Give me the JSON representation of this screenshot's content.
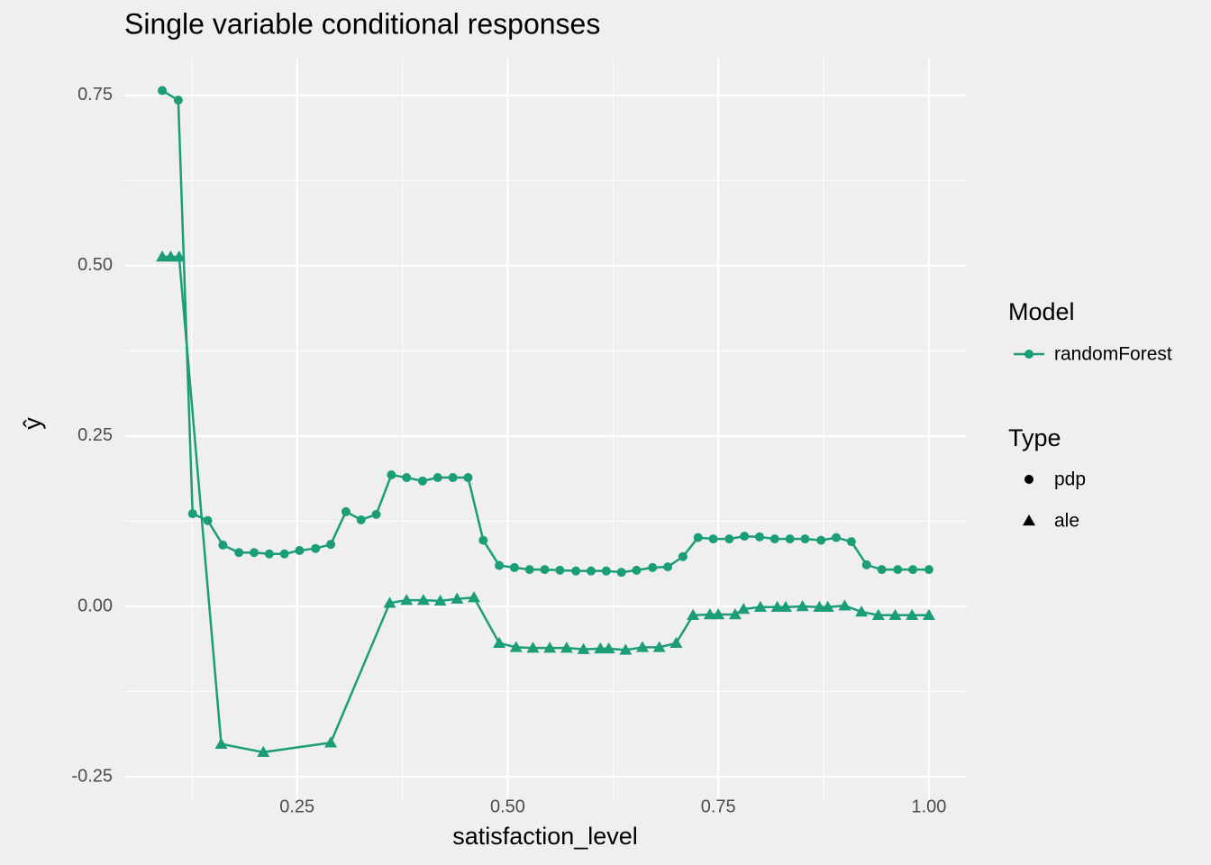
{
  "chart_data": {
    "type": "line",
    "title": "Single variable conditional responses",
    "x_label": "satisfaction_level",
    "y_label": "ŷ",
    "legend": {
      "model_title": "Model",
      "model": "randomForest",
      "type_title": "Type"
    },
    "series": [
      {
        "name": "pdp",
        "color": "#1b9e77",
        "marker": "circle",
        "x": [
          0.09,
          0.109,
          0.126,
          0.144,
          0.162,
          0.181,
          0.199,
          0.217,
          0.235,
          0.253,
          0.272,
          0.29,
          0.308,
          0.326,
          0.344,
          0.362,
          0.38,
          0.399,
          0.417,
          0.435,
          0.453,
          0.471,
          0.49,
          0.508,
          0.526,
          0.544,
          0.562,
          0.581,
          0.599,
          0.617,
          0.635,
          0.653,
          0.672,
          0.69,
          0.708,
          0.726,
          0.744,
          0.763,
          0.781,
          0.799,
          0.817,
          0.835,
          0.853,
          0.872,
          0.89,
          0.908,
          0.926,
          0.944,
          0.963,
          0.981,
          1.0
        ],
        "values": [
          0.757,
          0.743,
          0.136,
          0.126,
          0.09,
          0.079,
          0.079,
          0.077,
          0.077,
          0.082,
          0.085,
          0.091,
          0.139,
          0.127,
          0.135,
          0.193,
          0.189,
          0.184,
          0.189,
          0.189,
          0.189,
          0.097,
          0.06,
          0.057,
          0.054,
          0.054,
          0.053,
          0.052,
          0.052,
          0.052,
          0.05,
          0.053,
          0.057,
          0.058,
          0.073,
          0.101,
          0.099,
          0.099,
          0.103,
          0.102,
          0.099,
          0.099,
          0.099,
          0.097,
          0.101,
          0.095,
          0.061,
          0.054,
          0.054,
          0.054,
          0.054
        ]
      },
      {
        "name": "ale",
        "color": "#1b9e77",
        "marker": "triangle",
        "x": [
          0.09,
          0.1,
          0.11,
          0.16,
          0.21,
          0.29,
          0.36,
          0.38,
          0.4,
          0.42,
          0.44,
          0.46,
          0.49,
          0.51,
          0.53,
          0.55,
          0.57,
          0.59,
          0.61,
          0.62,
          0.64,
          0.66,
          0.68,
          0.7,
          0.72,
          0.74,
          0.75,
          0.77,
          0.78,
          0.8,
          0.82,
          0.83,
          0.85,
          0.87,
          0.88,
          0.9,
          0.92,
          0.94,
          0.96,
          0.98,
          1.0
        ],
        "values": [
          0.513,
          0.513,
          0.513,
          -0.202,
          -0.214,
          -0.2,
          0.005,
          0.009,
          0.009,
          0.008,
          0.011,
          0.013,
          -0.054,
          -0.06,
          -0.061,
          -0.061,
          -0.061,
          -0.063,
          -0.062,
          -0.062,
          -0.064,
          -0.06,
          -0.06,
          -0.054,
          -0.013,
          -0.012,
          -0.012,
          -0.012,
          -0.004,
          -0.001,
          -0.001,
          -0.001,
          0.0,
          -0.001,
          -0.001,
          0.001,
          -0.008,
          -0.013,
          -0.013,
          -0.013,
          -0.013
        ]
      }
    ],
    "xlim": [
      0.045,
      1.045
    ],
    "ylim": [
      -0.287,
      0.804
    ],
    "xticks": [
      {
        "value": 0.25,
        "label": "0.25"
      },
      {
        "value": 0.5,
        "label": "0.50"
      },
      {
        "value": 0.75,
        "label": "0.75"
      },
      {
        "value": 1,
        "label": "1.00"
      }
    ],
    "yticks": [
      {
        "value": -0.25,
        "label": "-0.25"
      },
      {
        "value": 0,
        "label": "0.00"
      },
      {
        "value": 0.25,
        "label": "0.25"
      },
      {
        "value": 0.5,
        "label": "0.50"
      },
      {
        "value": 0.75,
        "label": "0.75"
      }
    ],
    "x_minor": [
      0.125,
      0.375,
      0.625,
      0.875
    ],
    "y_minor": [
      -0.125,
      0.125,
      0.375,
      0.625
    ],
    "grid": true
  }
}
